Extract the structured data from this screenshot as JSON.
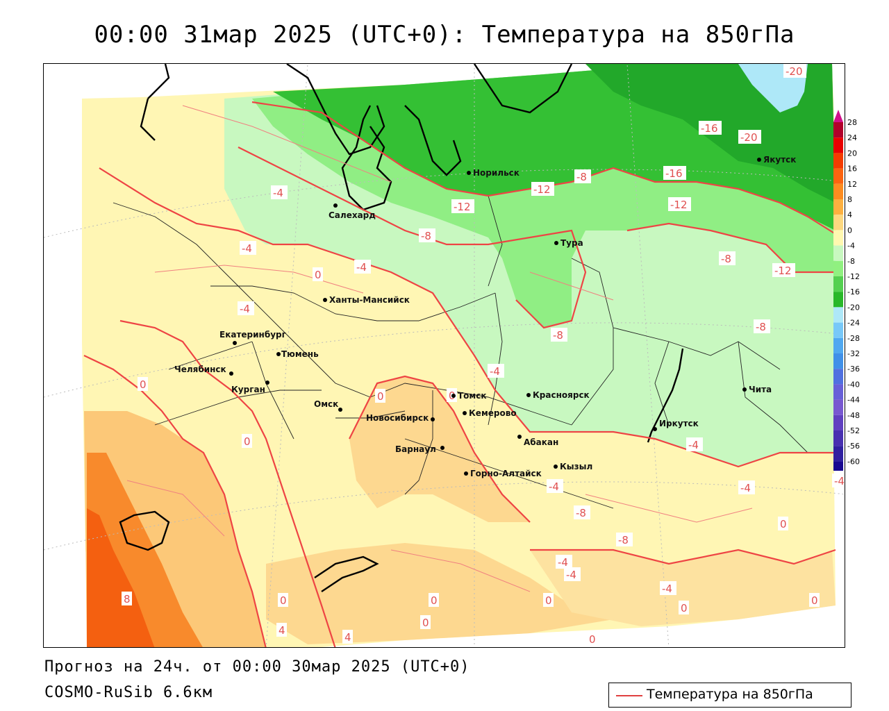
{
  "title": "00:00 31мар 2025 (UTC+0): Температура на 850гПа",
  "forecast_line": "Прогноз на 24ч. от 00:00 30мар 2025 (UTC+0)",
  "model_line": "COSMO-RuSib 6.6км",
  "legend": {
    "label": "Температура на 850гПа",
    "line_color": "#e04040"
  },
  "scale": {
    "labels": [
      "28",
      "24",
      "20",
      "16",
      "12",
      "8",
      "4",
      "0",
      "-4",
      "-8",
      "-12",
      "-16",
      "-20",
      "-24",
      "-28",
      "-32",
      "-36",
      "-40",
      "-44",
      "-48",
      "-52",
      "-56",
      "-60"
    ],
    "colors": [
      "#b0002a",
      "#e80000",
      "#f43c00",
      "#fc6410",
      "#fd8c20",
      "#fdb040",
      "#fdd880",
      "#fff8b0",
      "#c8f8c0",
      "#90f080",
      "#54d050",
      "#28b828",
      "#aee8f8",
      "#78c8f8",
      "#50a8f0",
      "#4090e8",
      "#5070e0",
      "#6860d8",
      "#7858d0",
      "#6040c0",
      "#4830b0",
      "#3020a0",
      "#180890"
    ],
    "top_triangle_color": "#d0108a"
  },
  "cities": [
    {
      "name": "Салехард"
    },
    {
      "name": "Норильск"
    },
    {
      "name": "Якутск"
    },
    {
      "name": "Тура"
    },
    {
      "name": "Ханты-Мансийск"
    },
    {
      "name": "Екатеринбург"
    },
    {
      "name": "Тюмень"
    },
    {
      "name": "Челябинск"
    },
    {
      "name": "Курган"
    },
    {
      "name": "Омск"
    },
    {
      "name": "Новосибирск"
    },
    {
      "name": "Томск"
    },
    {
      "name": "Кемерово"
    },
    {
      "name": "Барнаул"
    },
    {
      "name": "Горно-Алтайск"
    },
    {
      "name": "Абакан"
    },
    {
      "name": "Кызыл"
    },
    {
      "name": "Красноярск"
    },
    {
      "name": "Иркутск"
    },
    {
      "name": "Чита"
    }
  ],
  "contour_labels": [
    "-20",
    "-20",
    "-16",
    "-16",
    "-12",
    "-12",
    "-12",
    "-12",
    "-8",
    "-8",
    "-8",
    "-8",
    "-8",
    "-8",
    "-8",
    "-4",
    "-4",
    "-4",
    "-4",
    "-4",
    "-4",
    "-4",
    "-4",
    "-4",
    "-4",
    "-4",
    "0",
    "0",
    "0",
    "0",
    "0",
    "0",
    "0",
    "0",
    "0",
    "0",
    "0",
    "0",
    "0",
    "4",
    "4",
    "8",
    "-4"
  ]
}
